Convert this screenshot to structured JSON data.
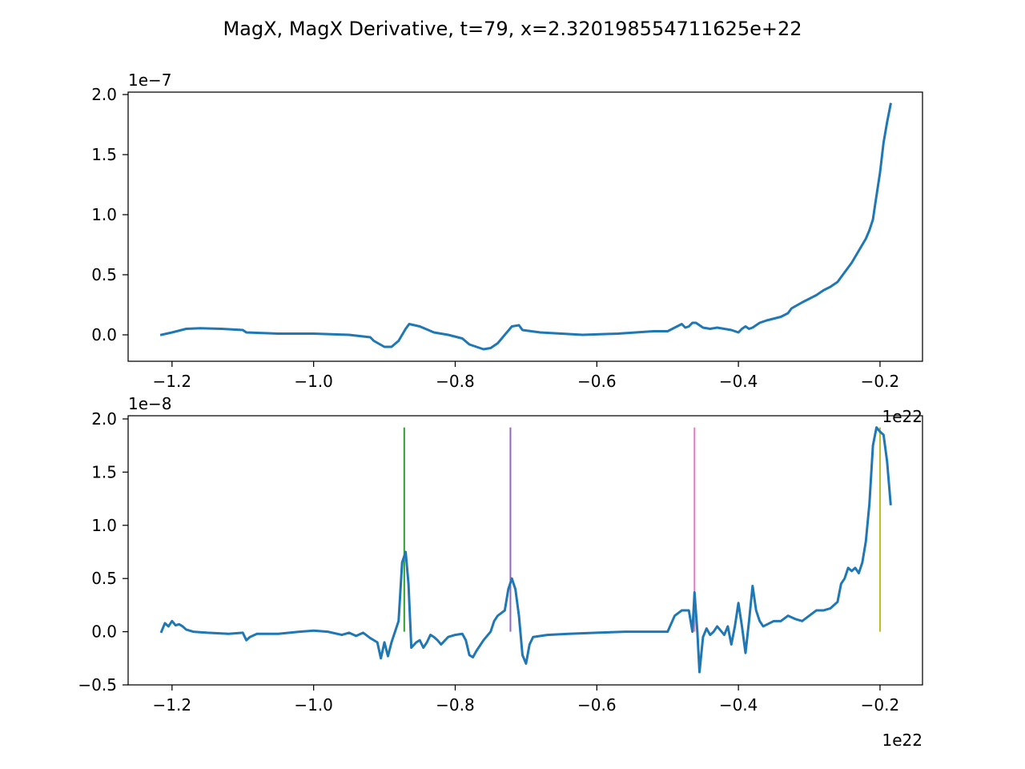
{
  "title": "MagX, MagX Derivative, t=79, x=2.320198554711625e+22",
  "colors": {
    "series": "#1f77b4",
    "markers": [
      "#2ca02c",
      "#9467bd",
      "#e377c2",
      "#bcbd22"
    ],
    "axes": "#000000",
    "background": "#ffffff"
  },
  "chart_data": [
    {
      "type": "line",
      "title": "",
      "xlabel": "",
      "ylabel": "",
      "x_offset_label": "1e22",
      "y_offset_label": "1e−7",
      "xlim": [
        -1.262,
        -0.14
      ],
      "ylim": [
        -0.22,
        2.02
      ],
      "xticks": [
        -1.2,
        -1.0,
        -0.8,
        -0.6,
        -0.4,
        -0.2
      ],
      "xtick_labels": [
        "−1.2",
        "−1.0",
        "−0.8",
        "−0.6",
        "−0.4",
        "−0.2"
      ],
      "yticks": [
        0.0,
        0.5,
        1.0,
        1.5,
        2.0
      ],
      "ytick_labels": [
        "0.0",
        "0.5",
        "1.0",
        "1.5",
        "2.0"
      ],
      "grid": false,
      "series": [
        {
          "color": "#1f77b4",
          "points": [
            [
              -1.215,
              0.0
            ],
            [
              -1.2,
              0.02
            ],
            [
              -1.18,
              0.05
            ],
            [
              -1.16,
              0.055
            ],
            [
              -1.13,
              0.05
            ],
            [
              -1.1,
              0.04
            ],
            [
              -1.095,
              0.02
            ],
            [
              -1.05,
              0.01
            ],
            [
              -1.0,
              0.01
            ],
            [
              -0.95,
              0.0
            ],
            [
              -0.92,
              -0.02
            ],
            [
              -0.915,
              -0.05
            ],
            [
              -0.9,
              -0.1
            ],
            [
              -0.89,
              -0.1
            ],
            [
              -0.88,
              -0.05
            ],
            [
              -0.87,
              0.05
            ],
            [
              -0.865,
              0.09
            ],
            [
              -0.85,
              0.07
            ],
            [
              -0.83,
              0.02
            ],
            [
              -0.81,
              0.0
            ],
            [
              -0.79,
              -0.03
            ],
            [
              -0.78,
              -0.08
            ],
            [
              -0.77,
              -0.1
            ],
            [
              -0.76,
              -0.12
            ],
            [
              -0.75,
              -0.11
            ],
            [
              -0.74,
              -0.07
            ],
            [
              -0.73,
              0.0
            ],
            [
              -0.72,
              0.07
            ],
            [
              -0.71,
              0.08
            ],
            [
              -0.705,
              0.04
            ],
            [
              -0.68,
              0.02
            ],
            [
              -0.62,
              0.0
            ],
            [
              -0.57,
              0.01
            ],
            [
              -0.52,
              0.03
            ],
            [
              -0.5,
              0.03
            ],
            [
              -0.49,
              0.06
            ],
            [
              -0.48,
              0.09
            ],
            [
              -0.475,
              0.06
            ],
            [
              -0.47,
              0.07
            ],
            [
              -0.465,
              0.1
            ],
            [
              -0.46,
              0.1
            ],
            [
              -0.45,
              0.06
            ],
            [
              -0.44,
              0.05
            ],
            [
              -0.43,
              0.06
            ],
            [
              -0.42,
              0.05
            ],
            [
              -0.41,
              0.04
            ],
            [
              -0.4,
              0.02
            ],
            [
              -0.395,
              0.05
            ],
            [
              -0.39,
              0.07
            ],
            [
              -0.385,
              0.05
            ],
            [
              -0.38,
              0.06
            ],
            [
              -0.37,
              0.1
            ],
            [
              -0.36,
              0.12
            ],
            [
              -0.34,
              0.15
            ],
            [
              -0.33,
              0.18
            ],
            [
              -0.325,
              0.22
            ],
            [
              -0.31,
              0.27
            ],
            [
              -0.3,
              0.3
            ],
            [
              -0.29,
              0.33
            ],
            [
              -0.28,
              0.37
            ],
            [
              -0.27,
              0.4
            ],
            [
              -0.26,
              0.44
            ],
            [
              -0.255,
              0.48
            ],
            [
              -0.25,
              0.52
            ],
            [
              -0.24,
              0.6
            ],
            [
              -0.23,
              0.7
            ],
            [
              -0.22,
              0.8
            ],
            [
              -0.215,
              0.87
            ],
            [
              -0.21,
              0.96
            ],
            [
              -0.207,
              1.08
            ],
            [
              -0.2,
              1.35
            ],
            [
              -0.195,
              1.6
            ],
            [
              -0.19,
              1.77
            ],
            [
              -0.185,
              1.92
            ]
          ]
        }
      ]
    },
    {
      "type": "line",
      "title": "",
      "xlabel": "",
      "ylabel": "",
      "x_offset_label": "1e22",
      "y_offset_label": "1e−8",
      "xlim": [
        -1.262,
        -0.14
      ],
      "ylim": [
        -0.5,
        2.03
      ],
      "xticks": [
        -1.2,
        -1.0,
        -0.8,
        -0.6,
        -0.4,
        -0.2
      ],
      "xtick_labels": [
        "−1.2",
        "−1.0",
        "−0.8",
        "−0.6",
        "−0.4",
        "−0.2"
      ],
      "yticks": [
        -0.5,
        0.0,
        0.5,
        1.0,
        1.5,
        2.0
      ],
      "ytick_labels": [
        "−0.5",
        "0.0",
        "0.5",
        "1.0",
        "1.5",
        "2.0"
      ],
      "grid": false,
      "series": [
        {
          "color": "#1f77b4",
          "points": [
            [
              -1.215,
              0.0
            ],
            [
              -1.21,
              0.08
            ],
            [
              -1.205,
              0.05
            ],
            [
              -1.2,
              0.1
            ],
            [
              -1.195,
              0.06
            ],
            [
              -1.19,
              0.07
            ],
            [
              -1.185,
              0.05
            ],
            [
              -1.18,
              0.02
            ],
            [
              -1.17,
              0.0
            ],
            [
              -1.15,
              -0.01
            ],
            [
              -1.12,
              -0.02
            ],
            [
              -1.1,
              -0.01
            ],
            [
              -1.095,
              -0.08
            ],
            [
              -1.09,
              -0.05
            ],
            [
              -1.08,
              -0.02
            ],
            [
              -1.05,
              -0.02
            ],
            [
              -1.02,
              0.0
            ],
            [
              -1.0,
              0.01
            ],
            [
              -0.98,
              0.0
            ],
            [
              -0.96,
              -0.03
            ],
            [
              -0.95,
              -0.01
            ],
            [
              -0.94,
              -0.04
            ],
            [
              -0.93,
              -0.01
            ],
            [
              -0.92,
              -0.06
            ],
            [
              -0.91,
              -0.1
            ],
            [
              -0.905,
              -0.25
            ],
            [
              -0.9,
              -0.1
            ],
            [
              -0.895,
              -0.23
            ],
            [
              -0.89,
              -0.1
            ],
            [
              -0.88,
              0.1
            ],
            [
              -0.875,
              0.65
            ],
            [
              -0.87,
              0.75
            ],
            [
              -0.866,
              0.45
            ],
            [
              -0.862,
              -0.15
            ],
            [
              -0.855,
              -0.1
            ],
            [
              -0.85,
              -0.08
            ],
            [
              -0.845,
              -0.15
            ],
            [
              -0.84,
              -0.1
            ],
            [
              -0.835,
              -0.03
            ],
            [
              -0.83,
              -0.05
            ],
            [
              -0.825,
              -0.08
            ],
            [
              -0.82,
              -0.12
            ],
            [
              -0.81,
              -0.05
            ],
            [
              -0.8,
              -0.03
            ],
            [
              -0.79,
              -0.02
            ],
            [
              -0.785,
              -0.08
            ],
            [
              -0.78,
              -0.22
            ],
            [
              -0.775,
              -0.24
            ],
            [
              -0.77,
              -0.18
            ],
            [
              -0.76,
              -0.08
            ],
            [
              -0.75,
              0.0
            ],
            [
              -0.745,
              0.1
            ],
            [
              -0.74,
              0.15
            ],
            [
              -0.73,
              0.2
            ],
            [
              -0.725,
              0.4
            ],
            [
              -0.72,
              0.5
            ],
            [
              -0.715,
              0.4
            ],
            [
              -0.71,
              0.15
            ],
            [
              -0.705,
              -0.22
            ],
            [
              -0.7,
              -0.3
            ],
            [
              -0.695,
              -0.12
            ],
            [
              -0.69,
              -0.05
            ],
            [
              -0.67,
              -0.03
            ],
            [
              -0.64,
              -0.02
            ],
            [
              -0.6,
              -0.01
            ],
            [
              -0.56,
              0.0
            ],
            [
              -0.52,
              0.0
            ],
            [
              -0.5,
              0.0
            ],
            [
              -0.49,
              0.15
            ],
            [
              -0.48,
              0.2
            ],
            [
              -0.47,
              0.2
            ],
            [
              -0.465,
              0.0
            ],
            [
              -0.462,
              0.37
            ],
            [
              -0.458,
              0.0
            ],
            [
              -0.455,
              -0.38
            ],
            [
              -0.45,
              -0.05
            ],
            [
              -0.445,
              0.03
            ],
            [
              -0.44,
              -0.03
            ],
            [
              -0.435,
              0.0
            ],
            [
              -0.43,
              0.05
            ],
            [
              -0.42,
              -0.03
            ],
            [
              -0.415,
              0.05
            ],
            [
              -0.41,
              -0.12
            ],
            [
              -0.405,
              0.05
            ],
            [
              -0.4,
              0.27
            ],
            [
              -0.395,
              0.05
            ],
            [
              -0.39,
              -0.2
            ],
            [
              -0.385,
              0.1
            ],
            [
              -0.38,
              0.43
            ],
            [
              -0.375,
              0.2
            ],
            [
              -0.37,
              0.1
            ],
            [
              -0.365,
              0.05
            ],
            [
              -0.35,
              0.1
            ],
            [
              -0.34,
              0.1
            ],
            [
              -0.33,
              0.15
            ],
            [
              -0.32,
              0.12
            ],
            [
              -0.31,
              0.1
            ],
            [
              -0.3,
              0.15
            ],
            [
              -0.29,
              0.2
            ],
            [
              -0.28,
              0.2
            ],
            [
              -0.27,
              0.22
            ],
            [
              -0.26,
              0.28
            ],
            [
              -0.255,
              0.45
            ],
            [
              -0.25,
              0.5
            ],
            [
              -0.245,
              0.6
            ],
            [
              -0.24,
              0.57
            ],
            [
              -0.235,
              0.6
            ],
            [
              -0.23,
              0.55
            ],
            [
              -0.225,
              0.65
            ],
            [
              -0.22,
              0.85
            ],
            [
              -0.215,
              1.2
            ],
            [
              -0.21,
              1.75
            ],
            [
              -0.205,
              1.92
            ],
            [
              -0.2,
              1.88
            ],
            [
              -0.195,
              1.85
            ],
            [
              -0.19,
              1.6
            ],
            [
              -0.185,
              1.2
            ]
          ]
        }
      ],
      "vertical_markers": [
        {
          "x": -0.872,
          "y_min": 0.0,
          "y_max": 1.92,
          "color": "#2ca02c"
        },
        {
          "x": -0.722,
          "y_min": 0.0,
          "y_max": 1.92,
          "color": "#9467bd"
        },
        {
          "x": -0.462,
          "y_min": 0.0,
          "y_max": 1.92,
          "color": "#e377c2"
        },
        {
          "x": -0.2,
          "y_min": 0.0,
          "y_max": 1.92,
          "color": "#bcbd22"
        }
      ]
    }
  ]
}
